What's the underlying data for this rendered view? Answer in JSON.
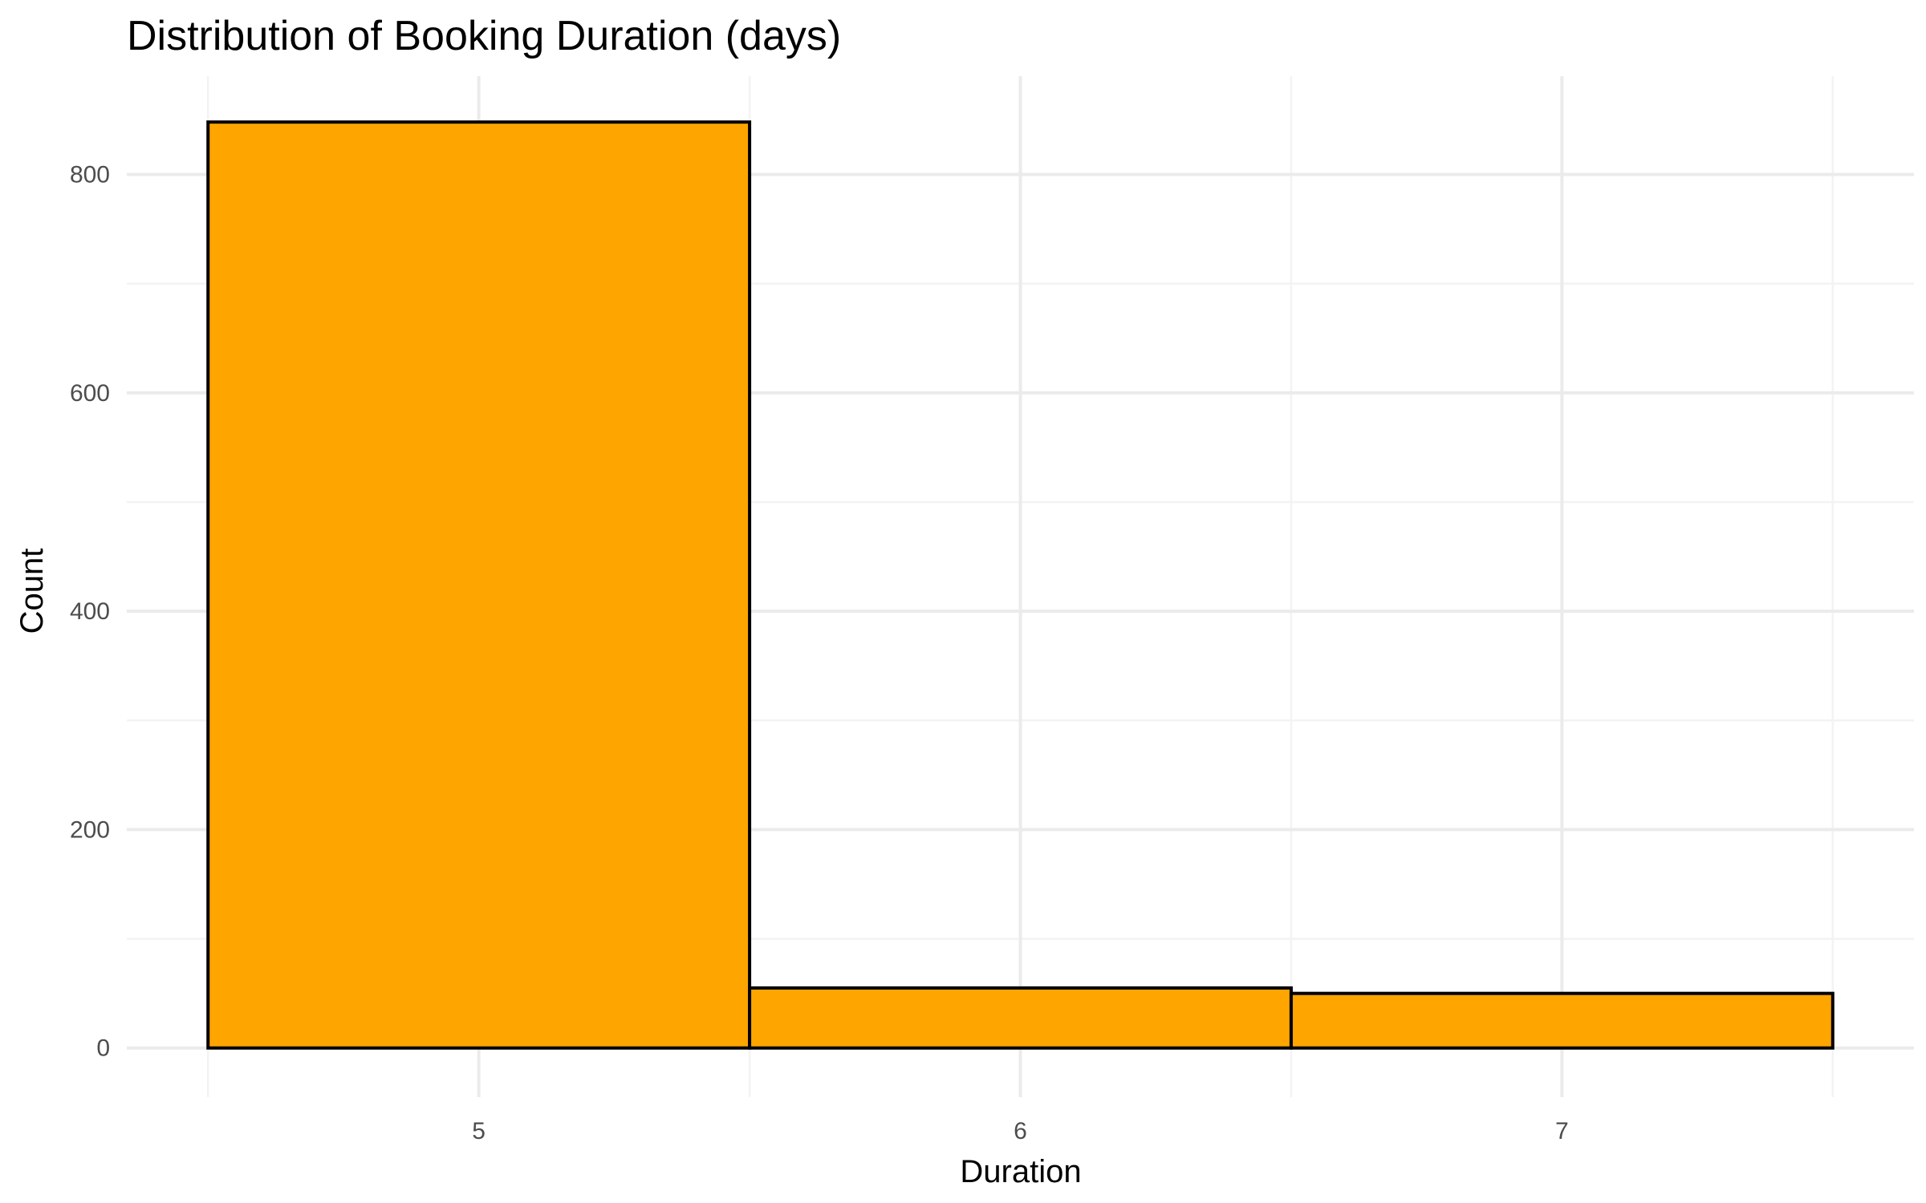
{
  "chart_data": {
    "type": "bar",
    "title": "Distribution of Booking Duration (days)",
    "xlabel": "Duration",
    "ylabel": "Count",
    "categories": [
      "5",
      "6",
      "7"
    ],
    "x": [
      5,
      6,
      7
    ],
    "values": [
      848,
      55,
      50
    ],
    "bin_width": 1,
    "xlim": [
      4.35,
      7.65
    ],
    "ylim": [
      -45,
      890
    ],
    "x_ticks": [
      5,
      6,
      7
    ],
    "y_ticks": [
      0,
      200,
      400,
      600,
      800
    ],
    "y_minor_ticks": [
      100,
      300,
      500,
      700
    ],
    "grid": true,
    "legend": "none",
    "fill_color": "#FFA500",
    "outline_color": "#000000"
  }
}
